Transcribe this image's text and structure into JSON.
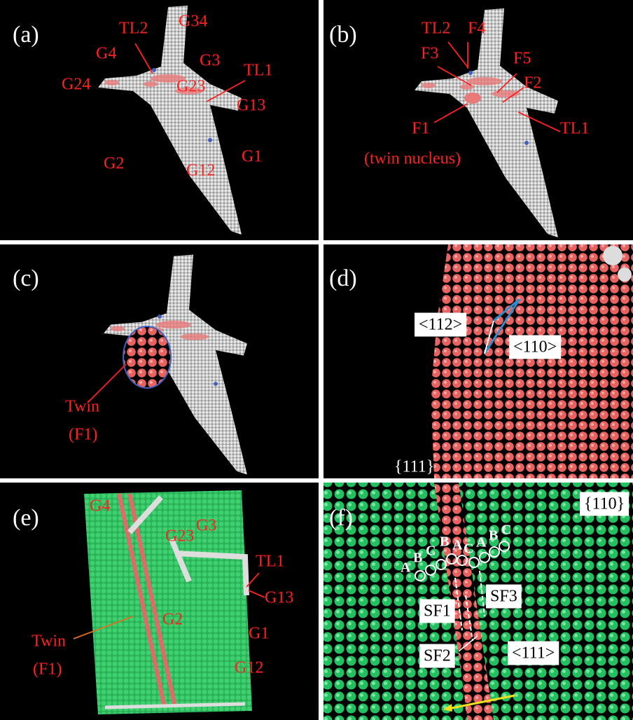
{
  "panels": [
    {
      "label": "(a)",
      "annotations": [
        "G34",
        "TL2",
        "G4",
        "G3",
        "TL1",
        "G24",
        "G23",
        "G13",
        "G2",
        "G12",
        "G1"
      ]
    },
    {
      "label": "(b)",
      "annotations": [
        "TL2",
        "F4",
        "F3",
        "F5",
        "F2",
        "TL1",
        "F1",
        "(twin nucleus)"
      ]
    },
    {
      "label": "(c)",
      "annotations": [
        "Twin",
        "(F1)"
      ]
    },
    {
      "label": "(d)",
      "annotations": [
        "<112>",
        "<110>",
        "{111}"
      ]
    },
    {
      "label": "(e)",
      "annotations": [
        "G4",
        "G3",
        "G23",
        "TL1",
        "G13",
        "G2",
        "G1",
        "G12",
        "Twin",
        "(F1)"
      ]
    },
    {
      "label": "(f)",
      "annotations": [
        "{110}",
        "A",
        "B",
        "C",
        "B",
        "A",
        "C",
        "A",
        "B",
        "C",
        "SF1",
        "SF3",
        "SF2",
        "<111>"
      ]
    }
  ]
}
